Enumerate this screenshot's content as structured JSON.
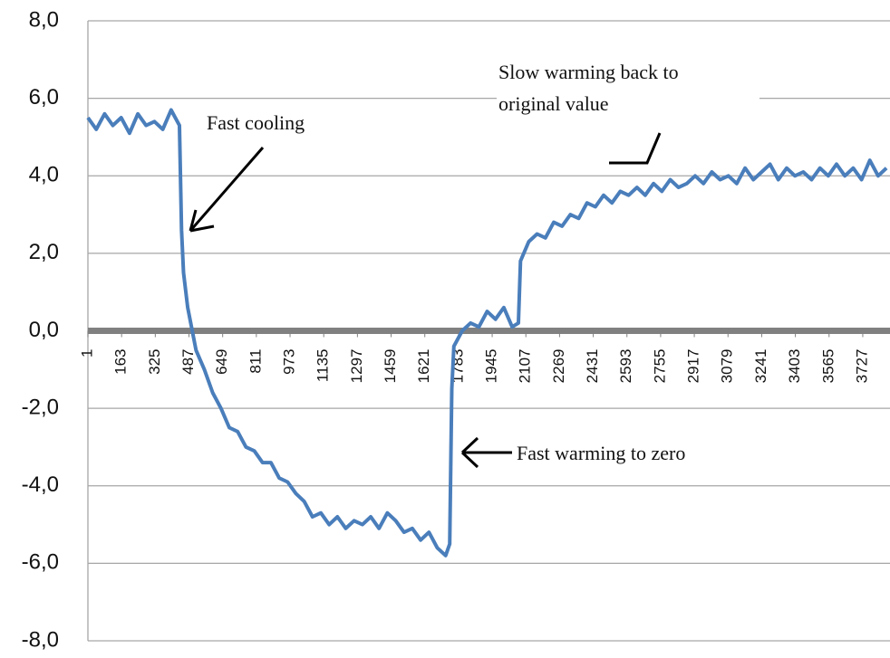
{
  "chart_data": {
    "type": "line",
    "color": "#4a7ebb",
    "grid": true,
    "xlim": [
      1,
      3858
    ],
    "xticks": [
      1,
      163,
      325,
      487,
      649,
      811,
      973,
      1135,
      1297,
      1459,
      1621,
      1783,
      1945,
      2107,
      2269,
      2431,
      2593,
      2755,
      2917,
      3079,
      3241,
      3403,
      3565,
      3727
    ],
    "ylim": [
      -8,
      8
    ],
    "yticks": [
      {
        "value": 8,
        "label": "8,0"
      },
      {
        "value": 6,
        "label": "6,0"
      },
      {
        "value": 4,
        "label": "4,0"
      },
      {
        "value": 2,
        "label": "2,0"
      },
      {
        "value": 0,
        "label": "0,0"
      },
      {
        "value": -2,
        "label": "-2,0"
      },
      {
        "value": -4,
        "label": "-4,0"
      },
      {
        "value": -6,
        "label": "-6,0"
      },
      {
        "value": -8,
        "label": "-8,0"
      }
    ],
    "x": [
      1,
      41,
      81,
      121,
      161,
      201,
      241,
      281,
      321,
      361,
      401,
      441,
      451,
      461,
      481,
      521,
      561,
      601,
      641,
      681,
      721,
      761,
      801,
      841,
      881,
      921,
      961,
      1001,
      1041,
      1081,
      1121,
      1161,
      1201,
      1241,
      1281,
      1321,
      1361,
      1401,
      1441,
      1481,
      1521,
      1561,
      1601,
      1641,
      1681,
      1721,
      1741,
      1751,
      1761,
      1801,
      1841,
      1881,
      1921,
      1961,
      2001,
      2041,
      2071,
      2081,
      2121,
      2161,
      2201,
      2241,
      2281,
      2321,
      2361,
      2401,
      2441,
      2481,
      2521,
      2561,
      2601,
      2641,
      2681,
      2721,
      2761,
      2801,
      2841,
      2881,
      2921,
      2961,
      3001,
      3041,
      3081,
      3121,
      3161,
      3201,
      3241,
      3281,
      3321,
      3361,
      3401,
      3441,
      3481,
      3521,
      3561,
      3601,
      3641,
      3681,
      3721,
      3761,
      3801,
      3841
    ],
    "values": [
      5.5,
      5.2,
      5.6,
      5.3,
      5.5,
      5.1,
      5.6,
      5.3,
      5.4,
      5.2,
      5.7,
      5.3,
      2.6,
      1.5,
      0.6,
      -0.5,
      -1.0,
      -1.6,
      -2.0,
      -2.5,
      -2.6,
      -3.0,
      -3.1,
      -3.4,
      -3.4,
      -3.8,
      -3.9,
      -4.2,
      -4.4,
      -4.8,
      -4.7,
      -5.0,
      -4.8,
      -5.1,
      -4.9,
      -5.0,
      -4.8,
      -5.1,
      -4.7,
      -4.9,
      -5.2,
      -5.1,
      -5.4,
      -5.2,
      -5.6,
      -5.8,
      -5.5,
      -1.5,
      -0.4,
      0.0,
      0.2,
      0.1,
      0.5,
      0.3,
      0.6,
      0.1,
      0.2,
      1.8,
      2.3,
      2.5,
      2.4,
      2.8,
      2.7,
      3.0,
      2.9,
      3.3,
      3.2,
      3.5,
      3.3,
      3.6,
      3.5,
      3.7,
      3.5,
      3.8,
      3.6,
      3.9,
      3.7,
      3.8,
      4.0,
      3.8,
      4.1,
      3.9,
      4.0,
      3.8,
      4.2,
      3.9,
      4.1,
      4.3,
      3.9,
      4.2,
      4.0,
      4.1,
      3.9,
      4.2,
      4.0,
      4.3,
      4.0,
      4.2,
      3.9,
      4.4,
      4.0,
      4.2
    ],
    "annotations": [
      {
        "text": "Fast cooling"
      },
      {
        "text": [
          "Slow warming back to",
          "original value"
        ]
      },
      {
        "text": "Fast warming to zero"
      }
    ]
  }
}
